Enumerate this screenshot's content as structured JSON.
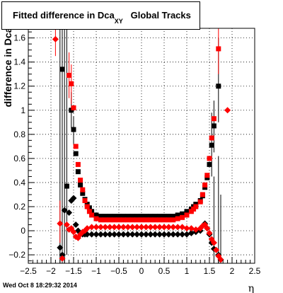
{
  "title": {
    "main": "Fitted difference in Dca",
    "sub": "XY",
    "suffix": "Global Tracks"
  },
  "footer": "Wed Oct  8 18:29:32 2014",
  "chart_data": {
    "type": "scatter",
    "title": "Fitted difference in DcaXY   Global Tracks",
    "xlabel": "η",
    "ylabel": "difference in Dca",
    "xlim": [
      -2.5,
      2.5
    ],
    "ylim": [
      -0.27,
      1.68
    ],
    "xticks": [
      "−2.5",
      "−2",
      "−1.5",
      "−1",
      "−0.5",
      "0",
      "0.5",
      "1",
      "1.5",
      "2",
      "2.5"
    ],
    "yticks": [
      "−0.2",
      "0",
      "0.2",
      "0.4",
      "0.6",
      "0.8",
      "1",
      "1.2",
      "1.4",
      "1.6"
    ],
    "grid": true,
    "colors": {
      "black": "#000000",
      "red": "#ff0000"
    },
    "series": [
      {
        "marker": "square",
        "color": "#000000",
        "points": [
          [
            -1.75,
            1.34
          ],
          [
            -1.65,
            0.37
          ],
          [
            -1.55,
            1.0
          ],
          [
            -1.5,
            0.84
          ],
          [
            -1.45,
            0.64
          ],
          [
            -1.4,
            0.49
          ],
          [
            -1.35,
            0.38
          ],
          [
            -1.3,
            0.31
          ],
          [
            -1.25,
            0.26
          ],
          [
            -1.2,
            0.22
          ],
          [
            -1.15,
            0.19
          ],
          [
            -1.1,
            0.16
          ],
          [
            -1.0,
            0.13
          ],
          [
            -0.9,
            0.12
          ],
          [
            -0.8,
            0.12
          ],
          [
            -0.7,
            0.12
          ],
          [
            -0.6,
            0.12
          ],
          [
            -0.5,
            0.12
          ],
          [
            -0.4,
            0.12
          ],
          [
            -0.3,
            0.12
          ],
          [
            -0.2,
            0.12
          ],
          [
            -0.1,
            0.12
          ],
          [
            0.0,
            0.12
          ],
          [
            0.1,
            0.12
          ],
          [
            0.2,
            0.12
          ],
          [
            0.3,
            0.12
          ],
          [
            0.4,
            0.12
          ],
          [
            0.5,
            0.12
          ],
          [
            0.6,
            0.12
          ],
          [
            0.7,
            0.12
          ],
          [
            0.8,
            0.13
          ],
          [
            0.9,
            0.14
          ],
          [
            1.0,
            0.16
          ],
          [
            1.1,
            0.18
          ],
          [
            1.15,
            0.2
          ],
          [
            1.2,
            0.22
          ],
          [
            1.3,
            0.25
          ],
          [
            1.35,
            0.29
          ],
          [
            1.4,
            0.36
          ],
          [
            1.45,
            0.44
          ],
          [
            1.5,
            0.55
          ],
          [
            1.55,
            0.71
          ],
          [
            1.6,
            0.87
          ],
          [
            1.7,
            1.2
          ]
        ],
        "errors": [
          [
            -1.75,
            1.55,
            1.68
          ],
          [
            -1.65,
            -0.2,
            1.68
          ],
          [
            -1.55,
            0.85,
            1.15
          ],
          [
            -1.5,
            0.72,
            0.95
          ],
          [
            1.55,
            0.45,
            0.98
          ],
          [
            1.6,
            0.65,
            1.08
          ],
          [
            1.7,
            0.9,
            1.6
          ]
        ]
      },
      {
        "marker": "square",
        "color": "#ff0000",
        "points": [
          [
            -1.6,
            1.29
          ],
          [
            -1.55,
            1.22
          ],
          [
            -1.5,
            1.02
          ],
          [
            -1.45,
            0.7
          ],
          [
            -1.4,
            0.55
          ],
          [
            -1.35,
            0.42
          ],
          [
            -1.3,
            0.34
          ],
          [
            -1.25,
            0.25
          ],
          [
            -1.2,
            0.2
          ],
          [
            -1.15,
            0.16
          ],
          [
            -1.1,
            0.13
          ],
          [
            -1.0,
            0.1
          ],
          [
            -0.9,
            0.09
          ],
          [
            -0.8,
            0.09
          ],
          [
            -0.7,
            0.09
          ],
          [
            -0.6,
            0.09
          ],
          [
            -0.5,
            0.09
          ],
          [
            -0.4,
            0.09
          ],
          [
            -0.3,
            0.09
          ],
          [
            -0.2,
            0.09
          ],
          [
            -0.1,
            0.09
          ],
          [
            0.0,
            0.09
          ],
          [
            0.1,
            0.09
          ],
          [
            0.2,
            0.09
          ],
          [
            0.3,
            0.09
          ],
          [
            0.4,
            0.09
          ],
          [
            0.5,
            0.09
          ],
          [
            0.6,
            0.09
          ],
          [
            0.7,
            0.09
          ],
          [
            0.8,
            0.1
          ],
          [
            0.9,
            0.11
          ],
          [
            1.0,
            0.13
          ],
          [
            1.1,
            0.16
          ],
          [
            1.15,
            0.18
          ],
          [
            1.2,
            0.2
          ],
          [
            1.3,
            0.24
          ],
          [
            1.35,
            0.3
          ],
          [
            1.4,
            0.38
          ],
          [
            1.45,
            0.46
          ],
          [
            1.5,
            0.6
          ],
          [
            1.55,
            0.77
          ],
          [
            1.6,
            0.93
          ],
          [
            1.7,
            1.51
          ]
        ],
        "errors": [
          [
            -1.6,
            1.1,
            1.48
          ],
          [
            -1.55,
            1.05,
            1.38
          ],
          [
            1.7,
            1.3,
            1.68
          ]
        ]
      },
      {
        "marker": "diamond",
        "color": "#000000",
        "points": [
          [
            -1.8,
            -0.14
          ],
          [
            -1.75,
            -0.2
          ],
          [
            -1.7,
            0.17
          ],
          [
            -1.6,
            0.15
          ],
          [
            -1.55,
            0.25
          ],
          [
            -1.5,
            0.27
          ],
          [
            -1.45,
            0.05
          ],
          [
            -1.4,
            0.0
          ],
          [
            -1.35,
            -0.02
          ],
          [
            -1.3,
            -0.03
          ],
          [
            -1.25,
            -0.03
          ],
          [
            -1.2,
            -0.03
          ],
          [
            -1.1,
            -0.03
          ],
          [
            -1.0,
            -0.03
          ],
          [
            -0.9,
            -0.03
          ],
          [
            -0.8,
            -0.03
          ],
          [
            -0.7,
            -0.03
          ],
          [
            -0.6,
            -0.03
          ],
          [
            -0.5,
            -0.03
          ],
          [
            -0.4,
            -0.03
          ],
          [
            -0.3,
            -0.03
          ],
          [
            -0.2,
            -0.03
          ],
          [
            -0.1,
            -0.03
          ],
          [
            0.0,
            -0.03
          ],
          [
            0.1,
            -0.03
          ],
          [
            0.2,
            -0.03
          ],
          [
            0.3,
            -0.03
          ],
          [
            0.4,
            -0.03
          ],
          [
            0.5,
            -0.03
          ],
          [
            0.6,
            -0.03
          ],
          [
            0.7,
            -0.03
          ],
          [
            0.8,
            -0.03
          ],
          [
            0.9,
            -0.03
          ],
          [
            1.0,
            -0.03
          ],
          [
            1.1,
            -0.02
          ],
          [
            1.2,
            -0.01
          ],
          [
            1.3,
            0.0
          ],
          [
            1.4,
            0.06
          ],
          [
            1.45,
            0.02
          ],
          [
            1.5,
            -0.03
          ],
          [
            1.55,
            -0.1
          ],
          [
            1.6,
            -0.15
          ],
          [
            1.7,
            -0.2
          ],
          [
            1.75,
            -0.24
          ]
        ],
        "errors": [
          [
            -1.8,
            -0.27,
            1.68
          ],
          [
            -1.75,
            -0.27,
            1.68
          ],
          [
            -1.7,
            -0.27,
            1.68
          ],
          [
            1.6,
            -0.27,
            0.45
          ],
          [
            1.7,
            -0.27,
            0.62
          ],
          [
            1.75,
            -0.27,
            0.3
          ]
        ]
      },
      {
        "marker": "diamond",
        "color": "#ff0000",
        "points": [
          [
            -1.9,
            1.59
          ],
          [
            -1.8,
            0.06
          ],
          [
            -1.75,
            -0.23
          ],
          [
            -1.65,
            0.05
          ],
          [
            -1.6,
            0.01
          ],
          [
            -1.55,
            0.02
          ],
          [
            -1.5,
            -0.01
          ],
          [
            -1.45,
            -0.05
          ],
          [
            -1.4,
            -0.06
          ],
          [
            -1.35,
            -0.03
          ],
          [
            -1.3,
            -0.01
          ],
          [
            -1.25,
            0.0
          ],
          [
            -1.2,
            0.02
          ],
          [
            -1.1,
            0.03
          ],
          [
            -1.0,
            0.03
          ],
          [
            -0.9,
            0.03
          ],
          [
            -0.8,
            0.03
          ],
          [
            -0.7,
            0.03
          ],
          [
            -0.6,
            0.03
          ],
          [
            -0.5,
            0.03
          ],
          [
            -0.4,
            0.03
          ],
          [
            -0.3,
            0.03
          ],
          [
            -0.2,
            0.03
          ],
          [
            -0.1,
            0.03
          ],
          [
            0.0,
            0.03
          ],
          [
            0.1,
            0.03
          ],
          [
            0.2,
            0.03
          ],
          [
            0.3,
            0.03
          ],
          [
            0.4,
            0.03
          ],
          [
            0.5,
            0.03
          ],
          [
            0.6,
            0.03
          ],
          [
            0.7,
            0.03
          ],
          [
            0.8,
            0.03
          ],
          [
            0.9,
            0.03
          ],
          [
            1.0,
            0.02
          ],
          [
            1.1,
            0.02
          ],
          [
            1.2,
            0.01
          ],
          [
            1.3,
            0.02
          ],
          [
            1.35,
            0.04
          ],
          [
            1.4,
            0.05
          ],
          [
            1.45,
            0.02
          ],
          [
            1.5,
            -0.02
          ],
          [
            1.55,
            -0.07
          ],
          [
            1.6,
            -0.1
          ],
          [
            1.65,
            -0.16
          ],
          [
            1.7,
            -0.21
          ],
          [
            1.75,
            -0.24
          ],
          [
            1.9,
            1.0
          ]
        ],
        "errors": [
          [
            -1.9,
            1.45,
            1.68
          ],
          [
            -1.8,
            -0.1,
            0.25
          ]
        ]
      }
    ]
  }
}
